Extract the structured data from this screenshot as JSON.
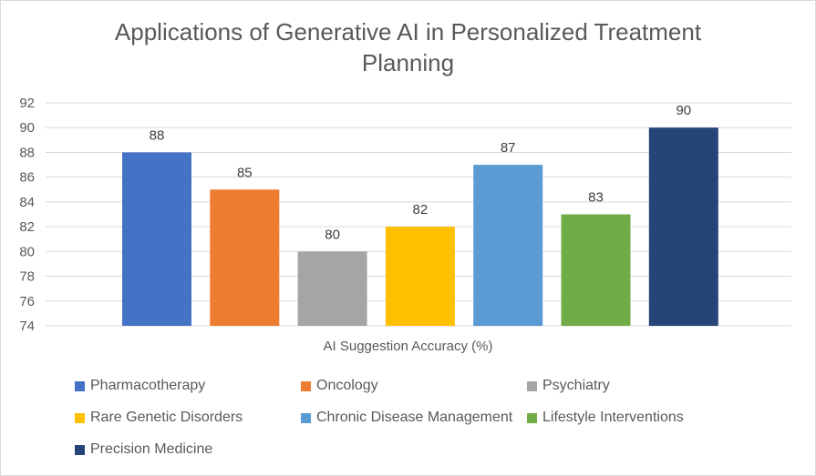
{
  "chart_data": {
    "type": "bar",
    "title": "Applications of Generative AI in Personalized Treatment Planning",
    "xlabel": "AI Suggestion Accuracy (%)",
    "ylabel": "",
    "ylim": [
      74,
      92
    ],
    "yticks": [
      74,
      76,
      78,
      80,
      82,
      84,
      86,
      88,
      90,
      92
    ],
    "grid": true,
    "legend_position": "bottom",
    "series": [
      {
        "name": "Pharmacotherapy",
        "value": 88,
        "color": "#4472c4"
      },
      {
        "name": "Oncology",
        "value": 85,
        "color": "#ed7d31"
      },
      {
        "name": "Psychiatry",
        "value": 80,
        "color": "#a5a5a5"
      },
      {
        "name": "Rare Genetic Disorders",
        "value": 82,
        "color": "#ffc000"
      },
      {
        "name": "Chronic Disease Management",
        "value": 87,
        "color": "#5b9bd5"
      },
      {
        "name": "Lifestyle Interventions",
        "value": 83,
        "color": "#70ad47"
      },
      {
        "name": "Precision Medicine",
        "value": 90,
        "color": "#264478"
      }
    ]
  }
}
